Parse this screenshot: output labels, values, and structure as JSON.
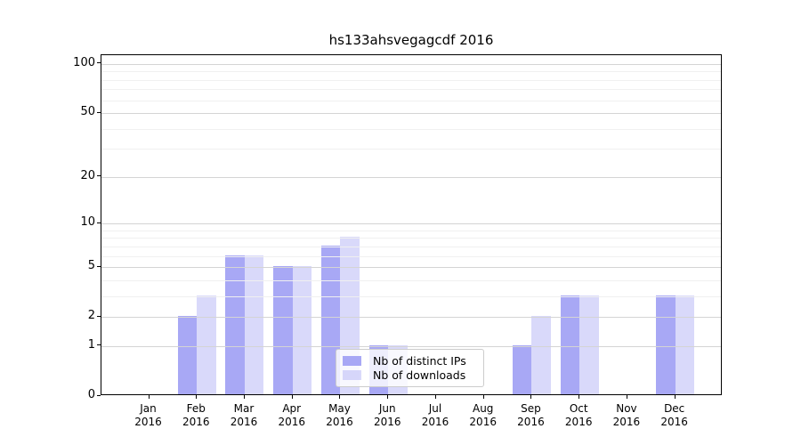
{
  "title": "hs133ahsvegagcdf 2016",
  "chart_data": {
    "type": "bar",
    "title": "hs133ahsvegagcdf 2016",
    "x_tick_line1": [
      "Jan",
      "Feb",
      "Mar",
      "Apr",
      "May",
      "Jun",
      "Jul",
      "Aug",
      "Sep",
      "Oct",
      "Nov",
      "Dec"
    ],
    "x_tick_line2": "2016",
    "series": [
      {
        "name": "Nb of distinct IPs",
        "color": "#9292f3",
        "opacity": 0.8,
        "values": [
          0,
          2,
          6,
          5,
          7,
          1,
          0,
          0,
          1,
          3,
          0,
          3
        ]
      },
      {
        "name": "Nb of downloads",
        "color": "#c0c0f7",
        "opacity": 0.6,
        "values": [
          0,
          3,
          6,
          5,
          8,
          1,
          0,
          0,
          2,
          3,
          0,
          3
        ]
      }
    ],
    "y_scale": "log1p",
    "y_tick_values": [
      0,
      1,
      2,
      5,
      10,
      20,
      50,
      100
    ],
    "y_minor_gridlines": [
      3,
      4,
      6,
      7,
      8,
      9,
      30,
      40,
      60,
      70,
      80,
      90
    ],
    "ylim": [
      0,
      113
    ],
    "grid": true,
    "legend_position": "lower center",
    "axis_color": "#000000",
    "major_grid_color": "#d4d4d4",
    "minor_grid_color": "#f0f0f0"
  }
}
